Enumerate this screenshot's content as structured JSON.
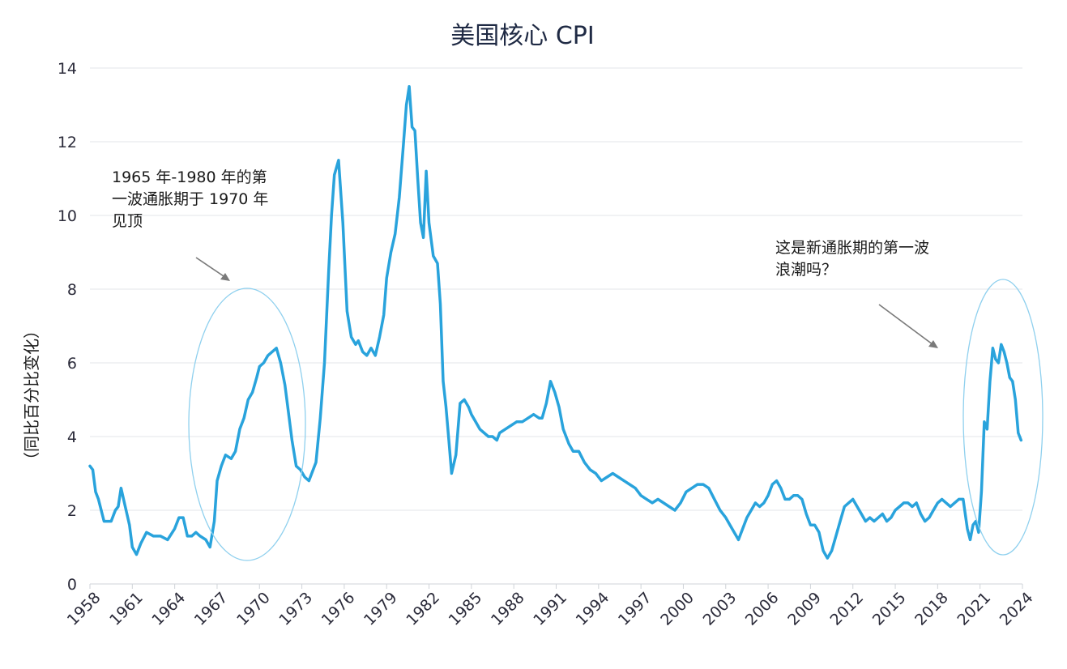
{
  "chart_data": {
    "type": "line",
    "title": "美国核心 CPI",
    "xlabel": "",
    "ylabel": "（同比百分比变化）",
    "xlim": [
      1958,
      2024
    ],
    "ylim": [
      0,
      14
    ],
    "yticks": [
      0,
      2,
      4,
      6,
      8,
      10,
      12,
      14
    ],
    "xticks": [
      "1958",
      "1961",
      "1964",
      "1967",
      "1970",
      "1973",
      "1976",
      "1979",
      "1982",
      "1985",
      "1988",
      "1991",
      "1994",
      "1997",
      "2000",
      "2003",
      "2006",
      "2009",
      "2012",
      "2015",
      "2018",
      "2021",
      "2024"
    ],
    "grid": "horizontal",
    "line_color": "#29a3dc",
    "series": [
      {
        "x": [
          1958.0,
          1958.2,
          1958.4,
          1958.6,
          1959.0,
          1959.5,
          1959.8,
          1960.0,
          1960.2,
          1960.5,
          1960.8,
          1961.0,
          1961.3,
          1961.6,
          1962.0,
          1962.5,
          1963.0,
          1963.5,
          1964.0,
          1964.3,
          1964.6,
          1964.9,
          1965.2,
          1965.5,
          1965.8,
          1966.2,
          1966.5,
          1966.8,
          1967.0,
          1967.3,
          1967.6,
          1968.0,
          1968.3,
          1968.6,
          1968.9,
          1969.2,
          1969.5,
          1969.8,
          1970.0,
          1970.3,
          1970.6,
          1970.9,
          1971.2,
          1971.5,
          1971.8,
          1972.0,
          1972.3,
          1972.6,
          1972.9,
          1973.2,
          1973.5,
          1973.8,
          1974.0,
          1974.3,
          1974.6,
          1974.9,
          1975.1,
          1975.3,
          1975.6,
          1975.9,
          1976.2,
          1976.5,
          1976.8,
          1977.0,
          1977.3,
          1977.6,
          1977.9,
          1978.2,
          1978.5,
          1978.8,
          1979.0,
          1979.3,
          1979.6,
          1979.9,
          1980.2,
          1980.4,
          1980.6,
          1980.8,
          1981.0,
          1981.2,
          1981.4,
          1981.6,
          1981.8,
          1982.0,
          1982.3,
          1982.6,
          1982.8,
          1983.0,
          1983.2,
          1983.4,
          1983.6,
          1983.9,
          1984.2,
          1984.5,
          1984.8,
          1985.0,
          1985.3,
          1985.6,
          1985.9,
          1986.2,
          1986.5,
          1986.8,
          1987.0,
          1987.4,
          1987.8,
          1988.2,
          1988.6,
          1989.0,
          1989.4,
          1989.8,
          1990.0,
          1990.3,
          1990.6,
          1990.9,
          1991.2,
          1991.5,
          1991.9,
          1992.2,
          1992.6,
          1993.0,
          1993.4,
          1993.8,
          1994.2,
          1994.6,
          1995.0,
          1995.4,
          1995.8,
          1996.2,
          1996.6,
          1997.0,
          1997.4,
          1997.8,
          1998.2,
          1998.6,
          1999.0,
          1999.4,
          1999.8,
          2000.2,
          2000.6,
          2001.0,
          2001.4,
          2001.8,
          2002.2,
          2002.6,
          2003.0,
          2003.3,
          2003.6,
          2003.9,
          2004.2,
          2004.5,
          2004.8,
          2005.1,
          2005.4,
          2005.7,
          2006.0,
          2006.3,
          2006.6,
          2006.9,
          2007.2,
          2007.5,
          2007.8,
          2008.1,
          2008.4,
          2008.7,
          2009.0,
          2009.3,
          2009.6,
          2009.9,
          2010.2,
          2010.5,
          2010.8,
          2011.1,
          2011.4,
          2011.7,
          2012.0,
          2012.3,
          2012.6,
          2012.9,
          2013.2,
          2013.5,
          2013.8,
          2014.1,
          2014.4,
          2014.7,
          2015.0,
          2015.3,
          2015.6,
          2015.9,
          2016.2,
          2016.5,
          2016.8,
          2017.1,
          2017.4,
          2017.7,
          2018.0,
          2018.3,
          2018.6,
          2018.9,
          2019.2,
          2019.5,
          2019.8,
          2020.1,
          2020.3,
          2020.5,
          2020.7,
          2020.9,
          2021.1,
          2021.3,
          2021.5,
          2021.7,
          2021.9,
          2022.1,
          2022.3,
          2022.5,
          2022.7,
          2022.9,
          2023.1,
          2023.3,
          2023.5,
          2023.7,
          2023.9
        ],
        "y": [
          3.2,
          3.1,
          2.5,
          2.3,
          1.7,
          1.7,
          2.0,
          2.1,
          2.6,
          2.1,
          1.6,
          1.0,
          0.8,
          1.1,
          1.4,
          1.3,
          1.3,
          1.2,
          1.5,
          1.8,
          1.8,
          1.3,
          1.3,
          1.4,
          1.3,
          1.2,
          1.0,
          1.7,
          2.8,
          3.2,
          3.5,
          3.4,
          3.6,
          4.2,
          4.5,
          5.0,
          5.2,
          5.6,
          5.9,
          6.0,
          6.2,
          6.3,
          6.4,
          6.0,
          5.4,
          4.8,
          3.9,
          3.2,
          3.1,
          2.9,
          2.8,
          3.1,
          3.3,
          4.5,
          6.0,
          8.5,
          10.0,
          11.1,
          11.5,
          9.8,
          7.4,
          6.7,
          6.5,
          6.6,
          6.3,
          6.2,
          6.4,
          6.2,
          6.7,
          7.3,
          8.3,
          9.0,
          9.5,
          10.5,
          12.0,
          13.0,
          13.5,
          12.4,
          12.3,
          11.0,
          9.8,
          9.4,
          11.2,
          9.8,
          8.9,
          8.7,
          7.6,
          5.5,
          4.8,
          3.9,
          3.0,
          3.5,
          4.9,
          5.0,
          4.8,
          4.6,
          4.4,
          4.2,
          4.1,
          4.0,
          4.0,
          3.9,
          4.1,
          4.2,
          4.3,
          4.4,
          4.4,
          4.5,
          4.6,
          4.5,
          4.5,
          4.9,
          5.5,
          5.2,
          4.8,
          4.2,
          3.8,
          3.6,
          3.6,
          3.3,
          3.1,
          3.0,
          2.8,
          2.9,
          3.0,
          2.9,
          2.8,
          2.7,
          2.6,
          2.4,
          2.3,
          2.2,
          2.3,
          2.2,
          2.1,
          2.0,
          2.2,
          2.5,
          2.6,
          2.7,
          2.7,
          2.6,
          2.3,
          2.0,
          1.8,
          1.6,
          1.4,
          1.2,
          1.5,
          1.8,
          2.0,
          2.2,
          2.1,
          2.2,
          2.4,
          2.7,
          2.8,
          2.6,
          2.3,
          2.3,
          2.4,
          2.4,
          2.3,
          1.9,
          1.6,
          1.6,
          1.4,
          0.9,
          0.7,
          0.9,
          1.3,
          1.7,
          2.1,
          2.2,
          2.3,
          2.1,
          1.9,
          1.7,
          1.8,
          1.7,
          1.8,
          1.9,
          1.7,
          1.8,
          2.0,
          2.1,
          2.2,
          2.2,
          2.1,
          2.2,
          1.9,
          1.7,
          1.8,
          2.0,
          2.2,
          2.3,
          2.2,
          2.1,
          2.2,
          2.3,
          2.3,
          1.5,
          1.2,
          1.6,
          1.7,
          1.4,
          2.5,
          4.4,
          4.2,
          5.5,
          6.4,
          6.1,
          6.0,
          6.5,
          6.3,
          6.0,
          5.6,
          5.5,
          5.0,
          4.1,
          3.9
        ]
      }
    ]
  },
  "annotations": [
    {
      "text": "1965 年-1980 年的第\n一波通胀期于 1970 年\n见顶"
    },
    {
      "text": "这是新通胀期的第一波\n浪潮吗？"
    }
  ]
}
